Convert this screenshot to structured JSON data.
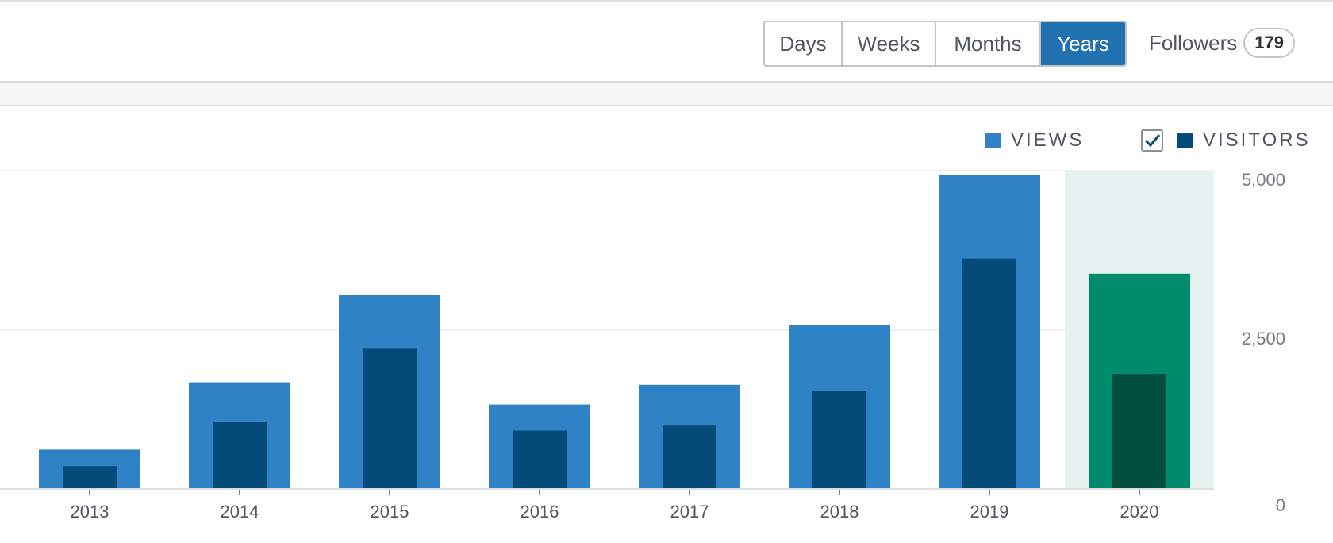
{
  "header": {
    "period_buttons": [
      {
        "label": "Days",
        "active": false
      },
      {
        "label": "Weeks",
        "active": false
      },
      {
        "label": "Months",
        "active": false
      },
      {
        "label": "Years",
        "active": true
      }
    ],
    "followers_label": "Followers",
    "followers_count": "179"
  },
  "legend": {
    "views_label": "VIEWS",
    "visitors_label": "VISITORS",
    "visitors_checked": true
  },
  "colors": {
    "views": "#2e82c5",
    "visitors": "#044b7a",
    "selected_views": "#008a6e",
    "selected_visitors": "#024f40",
    "selected_bg": "#e6f2ef",
    "active_button": "#2271b1"
  },
  "chart_data": {
    "type": "bar",
    "categories": [
      "2013",
      "2014",
      "2015",
      "2016",
      "2017",
      "2018",
      "2019",
      "2020"
    ],
    "series": [
      {
        "name": "VIEWS",
        "values": [
          620,
          1680,
          3060,
          1330,
          1640,
          2580,
          4950,
          3390
        ]
      },
      {
        "name": "VISITORS",
        "values": [
          360,
          1050,
          2220,
          920,
          1010,
          1540,
          3630,
          1810
        ]
      }
    ],
    "selected_category": "2020",
    "y_ticks": [
      "0",
      "2,500",
      "5,000"
    ],
    "ylim": [
      0,
      5000
    ],
    "grid": true
  }
}
